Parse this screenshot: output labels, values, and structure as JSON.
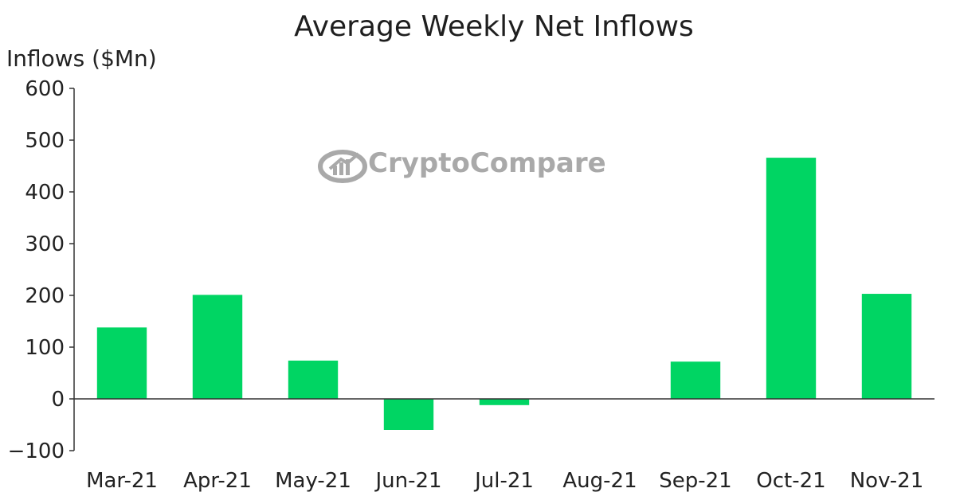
{
  "chart_data": {
    "type": "bar",
    "title": "Average Weekly Net Inflows",
    "xlabel": "",
    "ylabel": "Inflows ($Mn)",
    "categories": [
      "Mar-21",
      "Apr-21",
      "May-21",
      "Jun-21",
      "Jul-21",
      "Aug-21",
      "Sep-21",
      "Oct-21",
      "Nov-21"
    ],
    "values": [
      138,
      201,
      74,
      -60,
      -12,
      0,
      72,
      466,
      203
    ],
    "ylim": [
      -100,
      600
    ],
    "yticks": [
      "−100",
      "0",
      "100",
      "200",
      "300",
      "400",
      "500",
      "600"
    ],
    "ytick_values": [
      -100,
      0,
      100,
      200,
      300,
      400,
      500,
      600
    ],
    "grid": false,
    "bar_color": "#00d563"
  },
  "watermark": {
    "text": "CryptoCompare",
    "icon": "cryptocompare-logo-icon"
  },
  "colors": {
    "bar": "#00d563",
    "axis": "#333333",
    "watermark": "#a9a9a9"
  }
}
